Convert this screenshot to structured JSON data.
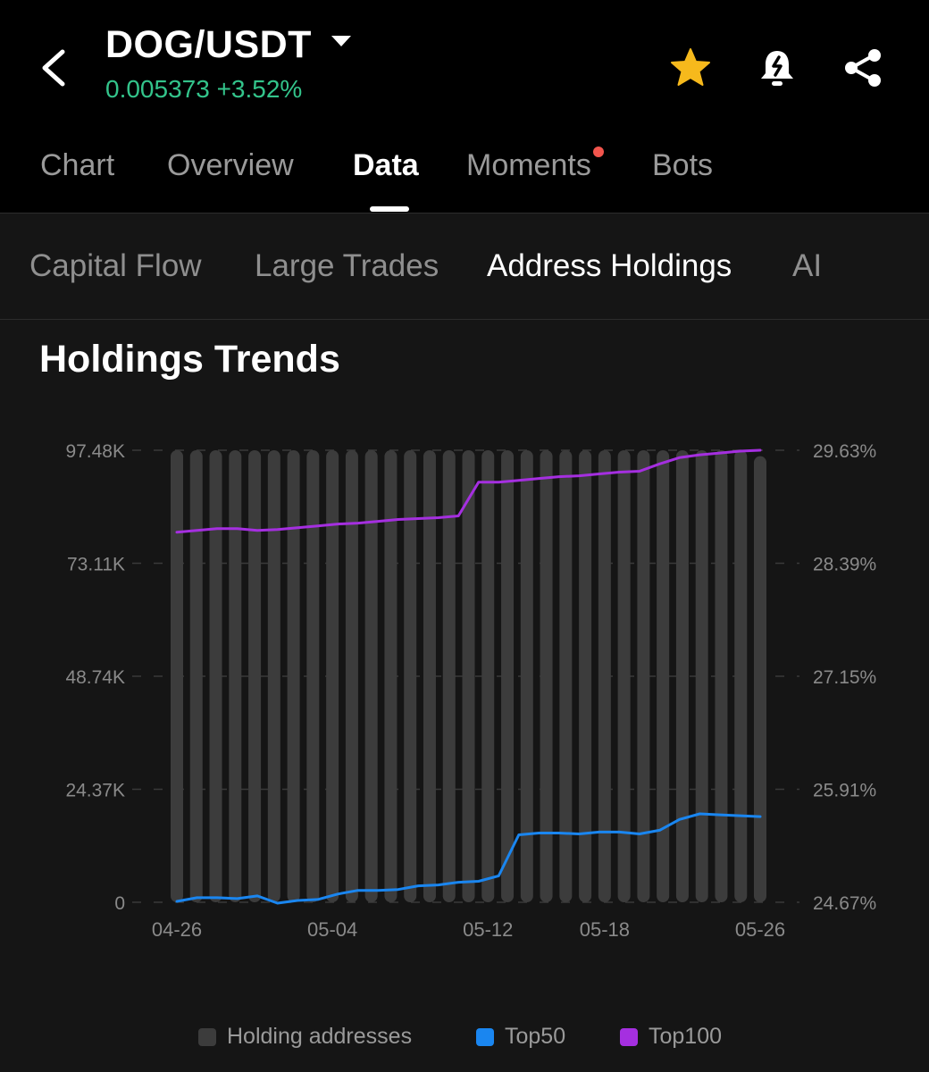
{
  "header": {
    "pair": "DOG/USDT",
    "price": "0.005373",
    "change": "+3.52%",
    "icons": [
      "back-icon",
      "dropdown-icon",
      "star-icon",
      "alert-bell-icon",
      "share-icon"
    ]
  },
  "main_tabs": [
    {
      "label": "Chart",
      "active": false
    },
    {
      "label": "Overview",
      "active": false
    },
    {
      "label": "Data",
      "active": true
    },
    {
      "label": "Moments",
      "active": false,
      "dot": true
    },
    {
      "label": "Bots",
      "active": false
    }
  ],
  "sub_tabs": [
    {
      "label": "Capital Flow",
      "active": false
    },
    {
      "label": "Large Trades",
      "active": false
    },
    {
      "label": "Address Holdings",
      "active": true
    },
    {
      "label": "AI",
      "active": false
    }
  ],
  "section": {
    "title": "Holdings Trends"
  },
  "colors": {
    "holding": "#3c3c3c",
    "top50": "#1a86f0",
    "top100": "#a52fe0",
    "price_up": "#33c48b",
    "star": "#f6b91c"
  },
  "chart_data": {
    "type": "bar+line",
    "x_tick_labels": [
      "04-26",
      "05-04",
      "05-12",
      "05-18",
      "05-26"
    ],
    "y_left_ticks": [
      "0",
      "24.37K",
      "48.74K",
      "73.11K",
      "97.48K"
    ],
    "y_right_ticks": [
      "24.67%",
      "25.91%",
      "27.15%",
      "28.39%",
      "29.63%"
    ],
    "y_left_range": [
      0,
      97480
    ],
    "y_right_range": [
      24.67,
      29.63
    ],
    "legend_position": "bottom",
    "series": [
      {
        "name": "Holding addresses",
        "type": "bar",
        "axis": "left",
        "values": [
          97480,
          97480,
          97480,
          97480,
          97480,
          97480,
          97480,
          97480,
          97480,
          97480,
          97480,
          97480,
          97480,
          97480,
          97480,
          97480,
          97480,
          97480,
          97480,
          97480,
          97480,
          97480,
          97480,
          97480,
          97480,
          97480,
          97480,
          97480,
          97480,
          97480,
          96200
        ]
      },
      {
        "name": "Top50",
        "type": "line",
        "axis": "right",
        "values": [
          24.68,
          24.72,
          24.72,
          24.71,
          24.74,
          24.66,
          24.69,
          24.7,
          24.76,
          24.8,
          24.8,
          24.81,
          24.85,
          24.86,
          24.89,
          24.9,
          24.96,
          25.41,
          25.43,
          25.43,
          25.42,
          25.44,
          25.44,
          25.42,
          25.46,
          25.58,
          25.64,
          25.63,
          25.62,
          25.61
        ]
      },
      {
        "name": "Top100",
        "type": "line",
        "axis": "right",
        "values": [
          28.73,
          28.75,
          28.77,
          28.77,
          28.75,
          28.76,
          28.78,
          28.8,
          28.82,
          28.83,
          28.85,
          28.87,
          28.88,
          28.89,
          28.91,
          29.28,
          29.28,
          29.3,
          29.32,
          29.34,
          29.35,
          29.37,
          29.39,
          29.4,
          29.48,
          29.55,
          29.58,
          29.6,
          29.62,
          29.63
        ]
      }
    ]
  },
  "legend": [
    {
      "label": "Holding addresses",
      "color": "#3c3c3c"
    },
    {
      "label": "Top50",
      "color": "#1a86f0"
    },
    {
      "label": "Top100",
      "color": "#a52fe0"
    }
  ]
}
